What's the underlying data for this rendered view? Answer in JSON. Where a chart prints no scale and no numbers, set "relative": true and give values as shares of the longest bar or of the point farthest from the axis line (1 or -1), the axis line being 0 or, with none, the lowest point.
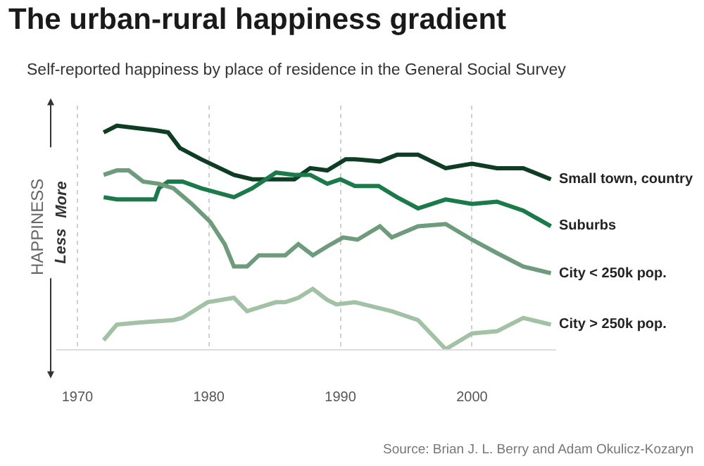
{
  "chart_data": {
    "type": "line",
    "title": "The urban-rural happiness gradient",
    "subtitle": "Self-reported happiness by place of residence in the General Social Survey",
    "ylabel": "HAPPINESS",
    "annotations": [
      "More",
      "Less",
      "Source: Brian J. L. Berry and Adam Okulicz-Kozaryn"
    ],
    "relative": true,
    "xlim": [
      1968.4,
      2006.4
    ],
    "xticks": [
      1970,
      1980,
      1990,
      2000
    ],
    "grid": "x",
    "legend": false,
    "marker": "none",
    "line_style": "solid",
    "series": [
      {
        "name": "Small town, country",
        "color": "#0f3d24",
        "x": [
          1972,
          1973,
          1974.4,
          1975.9,
          1976.9,
          1977.8,
          1979.4,
          1981.9,
          1983.3,
          1985.1,
          1986.5,
          1987.7,
          1989,
          1990.4,
          1991.1,
          1993,
          1994.3,
          1995.9,
          1998,
          2000,
          2001.9,
          2003.9,
          2006
        ],
        "values": [
          0.97,
          1,
          0.99,
          0.98,
          0.97,
          0.9,
          0.85,
          0.78,
          0.76,
          0.76,
          0.76,
          0.81,
          0.8,
          0.85,
          0.85,
          0.84,
          0.87,
          0.87,
          0.81,
          0.83,
          0.81,
          0.81,
          0.76
        ]
      },
      {
        "name": "Suburbs",
        "color": "#1b7a4a",
        "x": [
          1972,
          1973,
          1975.9,
          1976.2,
          1976.9,
          1978,
          1979.4,
          1981.9,
          1983.3,
          1985.1,
          1986.5,
          1987.7,
          1989,
          1990,
          1991.1,
          1992.9,
          1994.3,
          1995.9,
          1998,
          2000,
          2001.9,
          2003.9,
          2006
        ],
        "values": [
          0.68,
          0.67,
          0.67,
          0.72,
          0.75,
          0.75,
          0.72,
          0.68,
          0.72,
          0.79,
          0.78,
          0.78,
          0.74,
          0.76,
          0.73,
          0.73,
          0.68,
          0.63,
          0.67,
          0.65,
          0.66,
          0.62,
          0.55
        ]
      },
      {
        "name": "City < 250k pop.",
        "color": "#6e9b7b",
        "x": [
          1972,
          1973,
          1973.9,
          1975,
          1976.2,
          1977.3,
          1978.7,
          1980.1,
          1981.2,
          1981.9,
          1982.9,
          1983.8,
          1985.1,
          1985.8,
          1986.8,
          1987.9,
          1989,
          1990.2,
          1991.3,
          1993,
          1993.9,
          1995.9,
          1998,
          2000,
          2001.9,
          2003.9,
          2006
        ],
        "values": [
          0.78,
          0.8,
          0.8,
          0.75,
          0.74,
          0.72,
          0.65,
          0.57,
          0.47,
          0.37,
          0.37,
          0.42,
          0.42,
          0.42,
          0.47,
          0.42,
          0.46,
          0.5,
          0.49,
          0.55,
          0.5,
          0.55,
          0.56,
          0.49,
          0.43,
          0.37,
          0.34
        ]
      },
      {
        "name": "City > 250k pop.",
        "color": "#a2c1a5",
        "x": [
          1972,
          1973,
          1974.8,
          1977.3,
          1978,
          1979.9,
          1981.9,
          1982.9,
          1984,
          1985.1,
          1985.8,
          1986.8,
          1987.9,
          1989,
          1989.7,
          1991.1,
          1993.9,
          1995.9,
          1998,
          2000,
          2001.9,
          2003.9,
          2006
        ],
        "values": [
          0.04,
          0.11,
          0.12,
          0.13,
          0.14,
          0.21,
          0.23,
          0.17,
          0.19,
          0.21,
          0.21,
          0.23,
          0.27,
          0.22,
          0.2,
          0.21,
          0.17,
          0.13,
          0,
          0.07,
          0.08,
          0.14,
          0.11
        ]
      }
    ]
  }
}
